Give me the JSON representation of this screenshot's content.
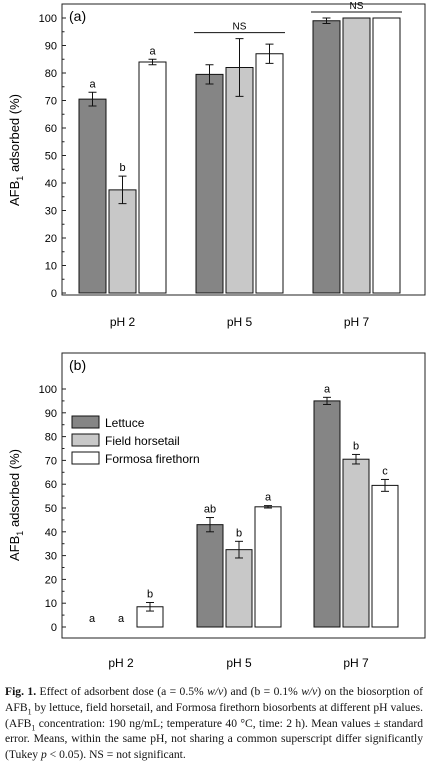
{
  "figure": {
    "caption_label": "Fig. 1.",
    "caption_text": [
      " Effect of adsorbent dose (a = 0.5% ",
      "w/v",
      ") and (b = 0.1% ",
      "w/v",
      ") on the biosorption of AFB",
      "1",
      " by lettuce, field horsetail, and Formosa firethorn biosorbents at different pH values. (AFB",
      "1",
      " concentration: 190 ng/mL; temperature 40 °C, time: 2 h). Mean values ± standard error. Means, within the same pH, not sharing a common superscript differ significantly (Tukey ",
      "p",
      " < 0.05). NS = not significant."
    ]
  },
  "colors": {
    "lettuce": "#858585",
    "field_horsetail": "#c8c8c8",
    "formosa_firethorn": "#ffffff"
  },
  "chart_data": [
    {
      "type": "bar",
      "panel_label": "(a)",
      "categories": [
        "pH 2",
        "pH 5",
        "pH 7"
      ],
      "ylabel": "AFB1 adsorbed (%)",
      "ylim": [
        0,
        100
      ],
      "yticks": [
        0,
        10,
        20,
        30,
        40,
        50,
        60,
        70,
        80,
        90,
        100
      ],
      "series": [
        {
          "values": [
            70.5,
            79.5,
            99.0
          ],
          "errors": [
            2.5,
            3.5,
            1.0
          ],
          "labels": [
            "a",
            "",
            ""
          ]
        },
        {
          "values": [
            37.5,
            82.0,
            100.0
          ],
          "errors": [
            5.0,
            10.5,
            0
          ],
          "labels": [
            "b",
            "",
            ""
          ]
        },
        {
          "values": [
            84.0,
            87.0,
            100.0
          ],
          "errors": [
            1.0,
            3.5,
            0
          ],
          "labels": [
            "a",
            "",
            ""
          ]
        }
      ],
      "group_annotations": [
        "",
        "NS",
        "NS"
      ]
    },
    {
      "type": "bar",
      "panel_label": "(b)",
      "categories": [
        "pH 2",
        "pH 5",
        "pH 7"
      ],
      "ylabel": "AFB1 adsorbed (%)",
      "ylim": [
        0,
        100
      ],
      "yticks": [
        0,
        10,
        20,
        30,
        40,
        50,
        60,
        70,
        80,
        90,
        100
      ],
      "legend_position": "upper-left",
      "series": [
        {
          "name": "Lettuce",
          "values": [
            0,
            43.0,
            95.0
          ],
          "errors": [
            0,
            3.0,
            1.5
          ],
          "labels": [
            "a",
            "ab",
            "a"
          ]
        },
        {
          "name": "Field horsetail",
          "values": [
            0,
            32.5,
            70.5
          ],
          "errors": [
            0,
            3.5,
            2.0
          ],
          "labels": [
            "a",
            "b",
            "b"
          ]
        },
        {
          "name": "Formosa firethorn",
          "values": [
            8.5,
            50.5,
            59.5
          ],
          "errors": [
            1.8,
            0.5,
            2.5
          ],
          "labels": [
            "b",
            "a",
            "c"
          ]
        }
      ]
    }
  ]
}
